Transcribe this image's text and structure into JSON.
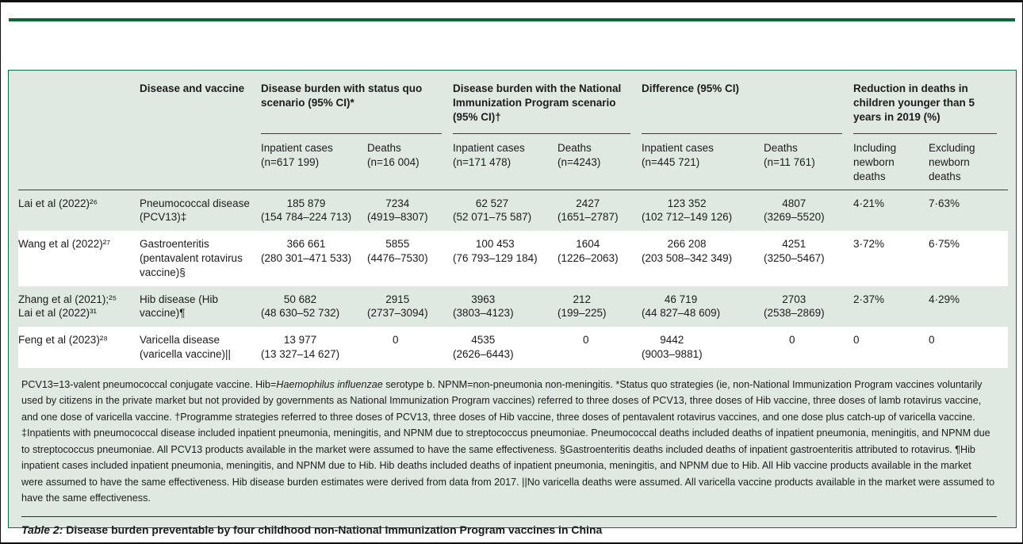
{
  "colors": {
    "brand_green": "#046a38",
    "panel_bg": "#dfe9e2",
    "panel_border": "#0b6b43",
    "rule": "#3a3a3a"
  },
  "table": {
    "header": {
      "study": "",
      "disease_and_vaccine": "Disease and vaccine",
      "groups": [
        {
          "label": "Disease burden with status quo scenario (95% CI)*",
          "sub": [
            "Inpatient cases\n(n=617 199)",
            "Deaths\n(n=16 004)"
          ]
        },
        {
          "label": "Disease burden with the National Immunization Program scenario (95% CI)†",
          "sub": [
            "Inpatient cases\n(n=171 478)",
            "Deaths\n(n=4243)"
          ]
        },
        {
          "label": "Difference (95% CI)",
          "sub": [
            "Inpatient cases\n(n=445 721)",
            "Deaths\n(n=11 761)"
          ]
        },
        {
          "label": "Reduction in deaths in children younger than 5 years in 2019 (%)",
          "sub": [
            "Including\nnewborn\ndeaths",
            "Excluding\nnewborn\ndeaths"
          ]
        }
      ]
    },
    "rows": [
      {
        "study": "Lai et al (2022)²⁶",
        "disease": "Pneumococcal disease (PCV13)‡",
        "cells": [
          {
            "v": "185 879",
            "ci": "(154 784–224 713)"
          },
          {
            "v": "7234",
            "ci": "(4919–8307)"
          },
          {
            "v": "62 527",
            "ci": "(52 071–75 587)"
          },
          {
            "v": "2427",
            "ci": "(1651–2787)"
          },
          {
            "v": "123 352",
            "ci": "(102 712–149 126)"
          },
          {
            "v": "4807",
            "ci": "(3269–5520)"
          }
        ],
        "including": "4·21%",
        "excluding": "7·63%"
      },
      {
        "study": "Wang et al (2022)²⁷",
        "disease": "Gastroenteritis (pentavalent rotavirus vaccine)§",
        "cells": [
          {
            "v": "366 661",
            "ci": "(280 301–471 533)"
          },
          {
            "v": "5855",
            "ci": "(4476–7530)"
          },
          {
            "v": "100 453",
            "ci": "(76 793–129 184)"
          },
          {
            "v": "1604",
            "ci": "(1226–2063)"
          },
          {
            "v": "266 208",
            "ci": "(203 508–342 349)"
          },
          {
            "v": "4251",
            "ci": "(3250–5467)"
          }
        ],
        "including": "3·72%",
        "excluding": "6·75%"
      },
      {
        "study": "Zhang et al (2021);²⁵\nLai et al (2022)³¹",
        "disease": "Hib disease (Hib vaccine)¶",
        "cells": [
          {
            "v": "50 682",
            "ci": "(48 630–52 732)"
          },
          {
            "v": "2915",
            "ci": "(2737–3094)"
          },
          {
            "v": "3963",
            "ci": "(3803–4123)"
          },
          {
            "v": "212",
            "ci": "(199–225)"
          },
          {
            "v": "46 719",
            "ci": "(44 827–48 609)"
          },
          {
            "v": "2703",
            "ci": "(2538–2869)"
          }
        ],
        "including": "2·37%",
        "excluding": "4·29%"
      },
      {
        "study": "Feng et al (2023)²⁸",
        "disease": "Varicella disease (varicella vaccine)||",
        "cells": [
          {
            "v": "13 977",
            "ci": "(13 327–14 627)"
          },
          {
            "v": "0",
            "ci": ""
          },
          {
            "v": "4535",
            "ci": "(2626–6443)"
          },
          {
            "v": "0",
            "ci": ""
          },
          {
            "v": "9442",
            "ci": "(9003–9881)"
          },
          {
            "v": "0",
            "ci": ""
          }
        ],
        "including": "0",
        "excluding": "0"
      }
    ]
  },
  "footnotes": {
    "part1": "PCV13=13-valent pneumococcal conjugate vaccine. Hib=",
    "italic": "Haemophilus influenzae",
    "part2": " serotype b. NPNM=non-pneumonia non-meningitis. *Status quo strategies (ie, non-National Immunization Program vaccines voluntarily used by citizens in the private market but not provided by governments as National Immunization Program vaccines) referred to three doses of PCV13, three doses of Hib vaccine, three doses of lamb rotavirus vaccine, and one dose of varicella vaccine. †Programme strategies referred to three doses of PCV13, three doses of Hib vaccine, three doses of pentavalent rotavirus vaccines, and one dose plus catch-up of varicella vaccine. ‡Inpatients with pneumococcal disease included inpatient pneumonia, meningitis, and NPNM due to streptococcus pneumoniae. Pneumococcal deaths included deaths of inpatient pneumonia, meningitis, and NPNM due to streptococcus pneumoniae. All PCV13 products available in the market were assumed to have the same effectiveness. §Gastroenteritis deaths included deaths of inpatient gastroenteritis attributed to rotavirus. ¶Hib inpatient cases included inpatient pneumonia, meningitis, and NPNM due to Hib. Hib deaths included deaths of inpatient pneumonia, meningitis, and NPNM due to Hib. All Hib vaccine products available in the market were assumed to have the same effectiveness. Hib disease burden estimates were derived from data from 2017. ||No varicella deaths were assumed. All varicella vaccine products available in the market were assumed to have the same effectiveness."
  },
  "caption": {
    "label": "Table 2:",
    "text": " Disease burden preventable by four childhood non-National Immunization Program vaccines in China"
  }
}
